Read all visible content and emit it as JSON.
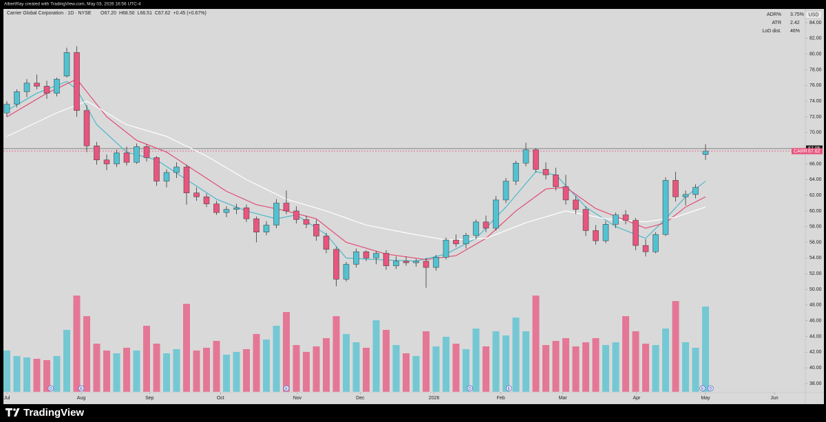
{
  "header": "AlbertRay created with TradingView.com, May 03, 2026 16:56 UTC-4",
  "footer": "TradingView",
  "chart_data": {
    "type": "candlestick",
    "symbol_line": "Carrier Global Corporation · 1D · NYSE",
    "ohlc": [
      "O67.20",
      "H68.50",
      "L66.51",
      "C67.62",
      "+0.45 (+0.67%)"
    ],
    "currency": "USD",
    "info": [
      [
        "ADR%",
        "3.75%"
      ],
      [
        "ATR",
        "2.42"
      ],
      [
        "LoD dist.",
        "46%"
      ]
    ],
    "up_color": "#52c2d2",
    "down_color": "#e8557f",
    "ylim": [
      38,
      84
    ],
    "yticks": [
      {
        "value": 84,
        "label": "84.00"
      },
      {
        "value": 82,
        "label": "82.00"
      },
      {
        "value": 80,
        "label": "80.00"
      },
      {
        "value": 78,
        "label": "78.00"
      },
      {
        "value": 76,
        "label": "76.00"
      },
      {
        "value": 74,
        "label": "74.00"
      },
      {
        "value": 72,
        "label": "72.00"
      },
      {
        "value": 70,
        "label": "70.00"
      },
      {
        "value": 68,
        "label": "68.00"
      },
      {
        "value": 66,
        "label": "66.00"
      },
      {
        "value": 64,
        "label": "64.00"
      },
      {
        "value": 62,
        "label": "62.00"
      },
      {
        "value": 60,
        "label": "60.00"
      },
      {
        "value": 58,
        "label": "58.00"
      },
      {
        "value": 56,
        "label": "56.00"
      },
      {
        "value": 54,
        "label": "54.00"
      },
      {
        "value": 52,
        "label": "52.00"
      },
      {
        "value": 50,
        "label": "50.00"
      },
      {
        "value": 48,
        "label": "48.00"
      },
      {
        "value": 46,
        "label": "46.00"
      },
      {
        "value": 44,
        "label": "44.00"
      },
      {
        "value": 42,
        "label": "42.00"
      },
      {
        "value": 40,
        "label": "40.00"
      },
      {
        "value": 38,
        "label": "38.00"
      }
    ],
    "xticks": [
      {
        "value": 0,
        "label": "Jul"
      },
      {
        "value": 7.45,
        "label": "Aug"
      },
      {
        "value": 14.3,
        "label": "Sep"
      },
      {
        "value": 21.4,
        "label": "Oct"
      },
      {
        "value": 29.1,
        "label": "Nov"
      },
      {
        "value": 35.4,
        "label": "Dec"
      },
      {
        "value": 42.8,
        "label": "2026"
      },
      {
        "value": 49.5,
        "label": "Feb"
      },
      {
        "value": 55.7,
        "label": "Mar"
      },
      {
        "value": 63.1,
        "label": "Apr"
      },
      {
        "value": 70,
        "label": "May"
      },
      {
        "value": 76.9,
        "label": "Jun"
      }
    ],
    "candles": [
      [
        72.5,
        74.0,
        72.0,
        73.6
      ],
      [
        73.6,
        75.5,
        73.2,
        75.2
      ],
      [
        75.2,
        76.8,
        74.5,
        76.3
      ],
      [
        76.3,
        77.4,
        75.5,
        75.9
      ],
      [
        75.9,
        76.6,
        74.3,
        75.0
      ],
      [
        75.0,
        77.0,
        74.6,
        76.8
      ],
      [
        77.2,
        80.8,
        77.0,
        80.2
      ],
      [
        80.2,
        81.0,
        72.0,
        72.8
      ],
      [
        72.8,
        73.5,
        67.5,
        68.3
      ],
      [
        68.3,
        68.8,
        65.9,
        66.5
      ],
      [
        66.5,
        67.2,
        65.2,
        66.0
      ],
      [
        66.0,
        67.8,
        65.6,
        67.4
      ],
      [
        67.4,
        68.2,
        65.8,
        66.2
      ],
      [
        66.2,
        68.6,
        66.0,
        68.2
      ],
      [
        68.2,
        68.5,
        66.3,
        66.8
      ],
      [
        66.8,
        67.0,
        63.2,
        63.8
      ],
      [
        63.8,
        65.3,
        63.0,
        64.9
      ],
      [
        64.9,
        66.2,
        64.2,
        65.6
      ],
      [
        65.6,
        65.9,
        60.8,
        62.3
      ],
      [
        62.3,
        63.0,
        61.3,
        61.8
      ],
      [
        61.8,
        62.2,
        60.5,
        60.9
      ],
      [
        60.9,
        61.3,
        59.5,
        59.8
      ],
      [
        59.8,
        60.6,
        59.2,
        60.2
      ],
      [
        60.2,
        60.9,
        59.6,
        60.4
      ],
      [
        60.4,
        60.8,
        58.6,
        59.0
      ],
      [
        59.0,
        59.3,
        56.0,
        57.3
      ],
      [
        57.3,
        58.7,
        56.9,
        58.2
      ],
      [
        58.2,
        61.5,
        57.8,
        61.0
      ],
      [
        61.0,
        62.6,
        59.6,
        60.0
      ],
      [
        60.0,
        60.6,
        58.4,
        58.9
      ],
      [
        58.9,
        59.4,
        57.8,
        58.3
      ],
      [
        58.3,
        58.9,
        56.2,
        56.8
      ],
      [
        56.8,
        57.2,
        54.6,
        55.1
      ],
      [
        55.1,
        55.4,
        50.4,
        51.3
      ],
      [
        51.3,
        53.5,
        51.0,
        53.2
      ],
      [
        53.2,
        55.2,
        52.8,
        54.8
      ],
      [
        54.8,
        55.0,
        53.6,
        54.0
      ],
      [
        54.0,
        54.9,
        53.2,
        54.6
      ],
      [
        54.6,
        55.0,
        52.5,
        53.0
      ],
      [
        53.0,
        54.2,
        52.6,
        53.6
      ],
      [
        53.6,
        54.2,
        53.0,
        53.4
      ],
      [
        53.4,
        53.9,
        52.9,
        53.6
      ],
      [
        53.6,
        54.0,
        50.2,
        52.8
      ],
      [
        52.8,
        54.4,
        52.4,
        54.1
      ],
      [
        54.1,
        56.6,
        53.8,
        56.3
      ],
      [
        56.3,
        57.0,
        55.4,
        55.8
      ],
      [
        55.8,
        57.2,
        55.2,
        56.9
      ],
      [
        56.9,
        58.9,
        56.4,
        58.6
      ],
      [
        58.6,
        59.4,
        57.3,
        57.8
      ],
      [
        57.8,
        61.9,
        57.5,
        61.4
      ],
      [
        61.4,
        64.2,
        61.0,
        63.8
      ],
      [
        63.8,
        66.4,
        63.3,
        66.1
      ],
      [
        66.1,
        68.7,
        65.7,
        67.8
      ],
      [
        67.8,
        68.0,
        64.9,
        65.3
      ],
      [
        65.3,
        66.2,
        64.0,
        64.6
      ],
      [
        64.6,
        65.5,
        62.6,
        63.1
      ],
      [
        63.1,
        64.6,
        60.8,
        61.4
      ],
      [
        61.4,
        61.9,
        59.6,
        60.2
      ],
      [
        60.2,
        60.6,
        56.8,
        57.5
      ],
      [
        57.5,
        58.2,
        55.7,
        56.2
      ],
      [
        56.2,
        58.7,
        55.9,
        58.3
      ],
      [
        58.3,
        59.8,
        57.8,
        59.5
      ],
      [
        59.5,
        60.1,
        58.3,
        58.8
      ],
      [
        58.8,
        59.1,
        55.0,
        55.6
      ],
      [
        55.6,
        56.4,
        54.2,
        54.8
      ],
      [
        54.8,
        57.3,
        54.6,
        57.0
      ],
      [
        57.0,
        64.3,
        56.8,
        63.9
      ],
      [
        63.9,
        65.0,
        61.2,
        61.8
      ],
      [
        61.8,
        62.6,
        60.7,
        62.1
      ],
      [
        62.1,
        63.4,
        61.6,
        63.0
      ],
      [
        67.2,
        68.5,
        66.51,
        67.62
      ]
    ],
    "volumes": [
      3.0,
      2.6,
      2.5,
      2.4,
      2.3,
      2.6,
      4.5,
      7.0,
      5.5,
      3.5,
      3.0,
      2.8,
      3.2,
      3.0,
      4.8,
      3.5,
      2.8,
      3.1,
      6.4,
      3.0,
      3.2,
      3.7,
      2.7,
      2.9,
      3.1,
      4.2,
      3.8,
      4.8,
      5.8,
      3.4,
      2.9,
      3.3,
      3.9,
      5.5,
      4.2,
      3.6,
      3.2,
      5.2,
      4.5,
      3.4,
      2.8,
      2.6,
      4.4,
      3.3,
      4.0,
      3.5,
      3.1,
      4.6,
      3.3,
      4.4,
      4.1,
      5.4,
      4.4,
      7.0,
      3.4,
      3.7,
      3.9,
      3.3,
      3.6,
      3.9,
      3.4,
      3.6,
      5.5,
      4.4,
      3.5,
      3.4,
      4.6,
      6.6,
      3.6,
      3.2,
      6.2
    ],
    "moving_averages": [
      {
        "color": "#4bb8cc",
        "x": [
          0,
          3,
          6,
          7,
          9,
          12,
          15,
          18,
          21,
          24,
          27,
          29,
          32,
          34,
          37,
          41,
          44,
          47,
          50,
          53,
          55,
          58,
          61,
          64,
          66,
          68,
          70
        ],
        "values": [
          72.8,
          75,
          76.5,
          75.5,
          71,
          67.5,
          66.5,
          64,
          61.5,
          60,
          59,
          59.5,
          57,
          54,
          53.8,
          53.6,
          54.5,
          56.5,
          60.5,
          65,
          64.6,
          60.5,
          58,
          56.5,
          59,
          61.8,
          63.8
        ]
      },
      {
        "color": "#e24a74",
        "x": [
          0,
          4,
          7,
          10,
          13,
          16,
          19,
          22,
          25,
          28,
          31,
          34,
          38,
          42,
          45,
          48,
          51,
          54,
          56,
          59,
          62,
          64,
          66,
          68,
          70
        ],
        "values": [
          72,
          75,
          76.8,
          72,
          69,
          67.5,
          65,
          62.5,
          60.8,
          60,
          59,
          56,
          54.5,
          53.8,
          54.3,
          56.5,
          60,
          62.8,
          63,
          60.3,
          58.8,
          57.8,
          58.5,
          60.5,
          61.8
        ]
      },
      {
        "color": "#ffffff",
        "x": [
          0,
          5,
          8,
          12,
          16,
          20,
          24,
          28,
          32,
          36,
          40,
          44,
          48,
          52,
          56,
          60,
          64,
          67,
          70
        ],
        "values": [
          69.5,
          72.5,
          74,
          71,
          69.5,
          67,
          64,
          61.5,
          60,
          58.2,
          57.2,
          56.3,
          56.5,
          58.5,
          60,
          59,
          58.6,
          59.2,
          60.5
        ]
      }
    ],
    "price_line": {
      "value": 67.95,
      "label": "67.95"
    },
    "last_price": {
      "symbol": "CARR",
      "value": 67.62,
      "label": "67.62"
    },
    "events": [
      {
        "x": 4.4,
        "label": "D"
      },
      {
        "x": 7.45,
        "label": "E"
      },
      {
        "x": 28,
        "label": "E"
      },
      {
        "x": 46.4,
        "label": "D"
      },
      {
        "x": 50.3,
        "label": "E"
      },
      {
        "x": 69.7,
        "label": "E"
      },
      {
        "x": 70.5,
        "label": "D"
      }
    ]
  }
}
